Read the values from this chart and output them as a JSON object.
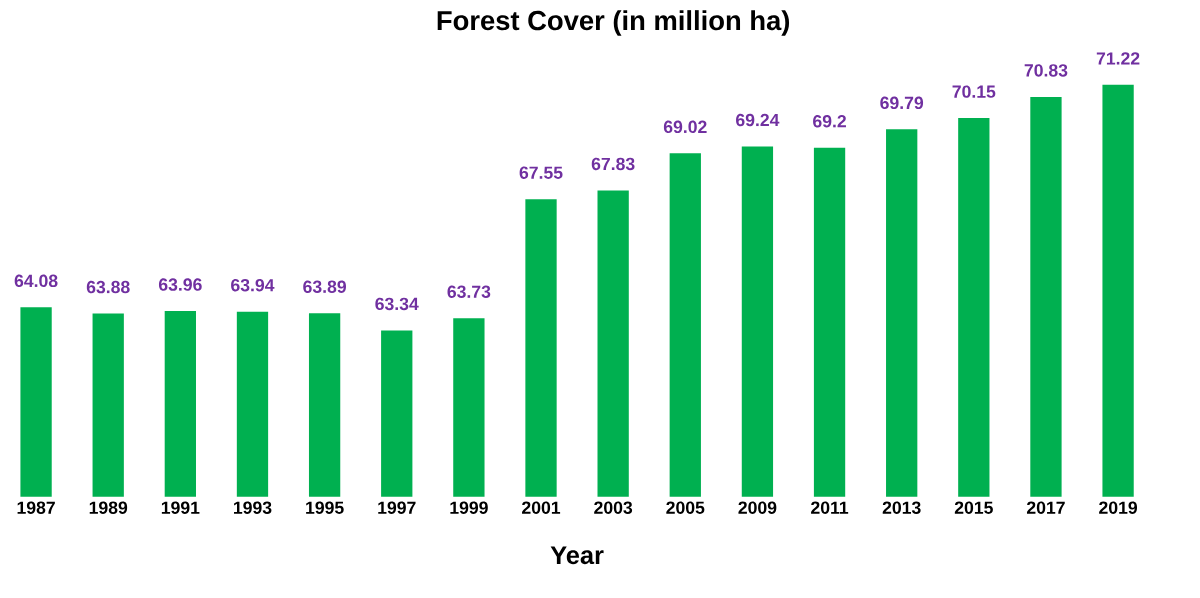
{
  "chart_data": {
    "type": "bar",
    "title": "Forest Cover (in million ha)",
    "xlabel": "Year",
    "categories": [
      "1987",
      "1989",
      "1991",
      "1993",
      "1995",
      "1997",
      "1999",
      "2001",
      "2003",
      "2005",
      "2009",
      "2011",
      "2013",
      "2015",
      "2017",
      "2019"
    ],
    "values": [
      64.08,
      63.88,
      63.96,
      63.94,
      63.89,
      63.34,
      63.73,
      67.55,
      67.83,
      69.02,
      69.24,
      69.2,
      69.79,
      70.15,
      70.83,
      71.22
    ],
    "color": "#00b050",
    "ylim": [
      58,
      71.22
    ],
    "tick_labels": "x",
    "data_labels": true
  }
}
